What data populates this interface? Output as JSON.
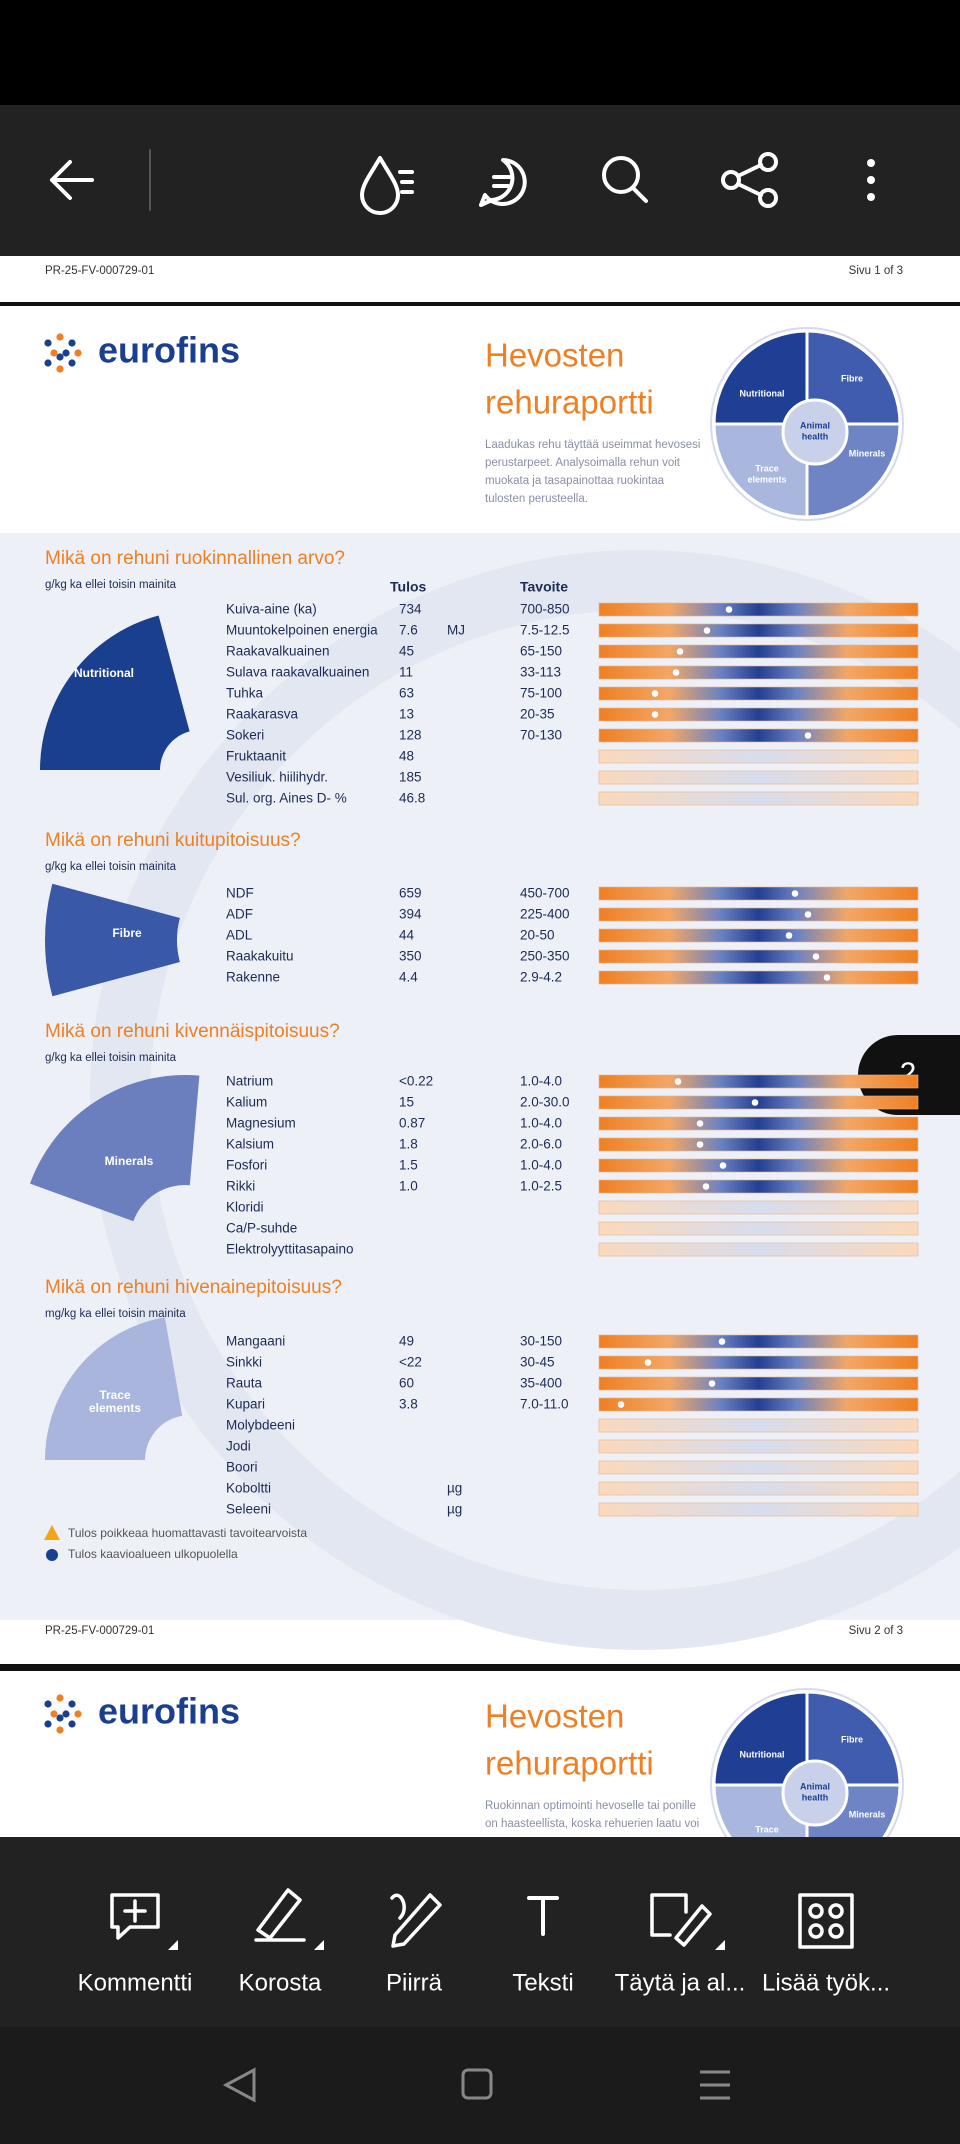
{
  "page1": {
    "id": "PR-25-FV-000729-01",
    "page": "Sivu 1 of 3"
  },
  "report": {
    "logo": "eurofins",
    "title": [
      "Hevosten",
      "rehuraportti"
    ],
    "intro": [
      "Laadukas rehu täyttää useimmat hevosesi",
      "perustarpeet. Analysoimalla rehun voit",
      "muokata ja tasapainottaa ruokintaa",
      "tulosten perusteella."
    ],
    "puzzle": {
      "nutritional": "Nutritional",
      "fibre": "Fibre",
      "animal": [
        "Animal",
        "health"
      ],
      "minerals": "Minerals",
      "trace": [
        "Trace",
        "elements"
      ]
    },
    "columns": [
      "Tulos",
      "Tavoite"
    ],
    "sections": [
      {
        "heading": "Mikä on rehuni ruokinnallinen arvo?",
        "unit_note": "g/kg ka ellei toisin mainita",
        "piece": [
          "Nutritional"
        ],
        "rows": [
          {
            "name": "Kuiva-aine (ka)",
            "result": "734",
            "target": "700-850"
          },
          {
            "name": "Muuntokelpoinen energia",
            "result": "7.6",
            "unit": "MJ",
            "target": "7.5-12.5"
          },
          {
            "name": "Raakavalkuainen",
            "result": "45",
            "target": "65-150"
          },
          {
            "name": "Sulava raakavalkuainen",
            "result": "11",
            "target": "33-113"
          },
          {
            "name": "Tuhka",
            "result": "63",
            "target": "75-100"
          },
          {
            "name": "Raakarasva",
            "result": "13",
            "target": "20-35"
          },
          {
            "name": "Sokeri",
            "result": "128",
            "target": "70-130"
          },
          {
            "name": "Fruktaanit",
            "result": "48"
          },
          {
            "name": "Vesiliuk. hiilihydr.",
            "result": "185"
          },
          {
            "name": "Sul. org. Aines D- %",
            "result": "46.8"
          }
        ]
      },
      {
        "heading": "Mikä on rehuni kuitupitoisuus?",
        "unit_note": "g/kg ka ellei toisin mainita",
        "piece": [
          "Fibre"
        ],
        "rows": [
          {
            "name": "NDF",
            "result": "659",
            "target": "450-700"
          },
          {
            "name": "ADF",
            "result": "394",
            "target": "225-400"
          },
          {
            "name": "ADL",
            "result": "44",
            "target": "20-50"
          },
          {
            "name": "Raakakuitu",
            "result": "350",
            "target": "250-350"
          },
          {
            "name": "Rakenne",
            "result": "4.4",
            "target": "2.9-4.2"
          }
        ]
      },
      {
        "heading": "Mikä on rehuni kivennäispitoisuus?",
        "unit_note": "g/kg ka ellei toisin mainita",
        "piece": [
          "Minerals"
        ],
        "rows": [
          {
            "name": "Natrium",
            "result": "<0.22",
            "target": "1.0-4.0"
          },
          {
            "name": "Kalium",
            "result": "15",
            "target": "2.0-30.0"
          },
          {
            "name": "Magnesium",
            "result": "0.87",
            "target": "1.0-4.0"
          },
          {
            "name": "Kalsium",
            "result": "1.8",
            "target": "2.0-6.0"
          },
          {
            "name": "Fosfori",
            "result": "1.5",
            "target": "1.0-4.0"
          },
          {
            "name": "Rikki",
            "result": "1.0",
            "target": "1.0-2.5"
          },
          {
            "name": "Kloridi"
          },
          {
            "name": "Ca/P-suhde"
          },
          {
            "name": "Elektrolyyttitasapaino"
          }
        ]
      },
      {
        "heading": "Mikä on rehuni hivenainepitoisuus?",
        "unit_note": "mg/kg ka ellei toisin mainita",
        "piece": [
          "Trace",
          "elements"
        ],
        "rows": [
          {
            "name": "Mangaani",
            "result": "49",
            "target": "30-150"
          },
          {
            "name": "Sinkki",
            "result": "<22",
            "target": "30-45"
          },
          {
            "name": "Rauta",
            "result": "60",
            "target": "35-400"
          },
          {
            "name": "Kupari",
            "result": "3.8",
            "target": "7.0-11.0"
          },
          {
            "name": "Molybdeeni"
          },
          {
            "name": "Jodi"
          },
          {
            "name": "Boori"
          },
          {
            "name": "Koboltti",
            "unit": "µg"
          },
          {
            "name": "Seleeni",
            "unit": "µg"
          }
        ]
      }
    ],
    "legend": [
      "Tulos poikkeaa huomattavasti tavoitearvoista",
      "Tulos kaavioalueen ulkopuolella"
    ],
    "footer": {
      "id": "PR-25-FV-000729-01",
      "page": "Sivu 2 of 3"
    }
  },
  "badge": "2",
  "next_page": {
    "logo": "eurofins",
    "title": [
      "Hevosten",
      "rehuraportti"
    ],
    "intro": [
      "Ruokinnan optimointi hevoselle tai ponille",
      "on haasteellista, koska rehuerien laatu voi"
    ],
    "puzzle": {
      "nutritional": "Nutritional",
      "fibre": "Fibre",
      "animal": [
        "Animal",
        "health"
      ],
      "minerals": "Minerals",
      "trace": [
        "Trace"
      ]
    }
  },
  "toolbar": [
    "Kommentti",
    "Korosta",
    "Piirrä",
    "Teksti",
    "Täytä ja al...",
    "Lisää työk..."
  ]
}
